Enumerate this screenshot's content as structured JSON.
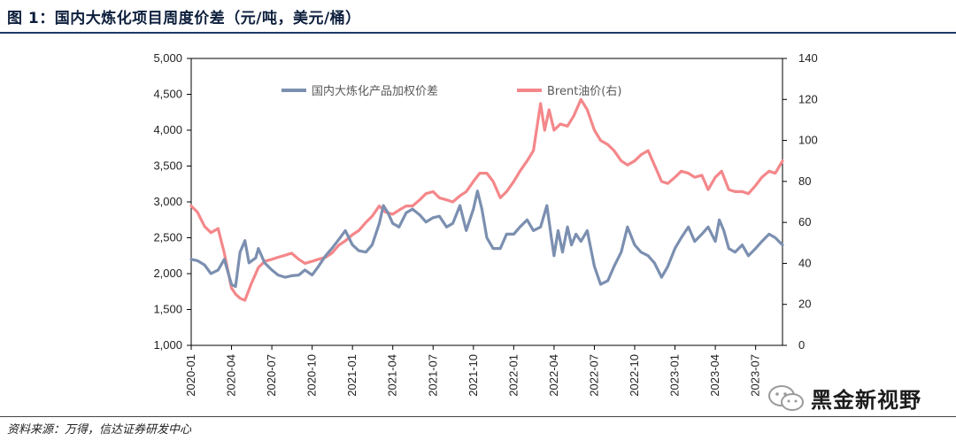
{
  "figure": {
    "title": "图 1：国内大炼化项目周度价差（元/吨，美元/桶）",
    "source": "资料来源：万得，信达证券研发中心",
    "watermark": "黑金新视野"
  },
  "chart_data": {
    "type": "line",
    "grid": false,
    "legend_position": "top-center",
    "colors": {
      "spread": "#7b8fb0",
      "brent": "#f4878a"
    },
    "x_tick_labels": [
      "2020-01",
      "2020-04",
      "2020-07",
      "2020-10",
      "2021-01",
      "2021-04",
      "2021-07",
      "2021-10",
      "2022-01",
      "2022-04",
      "2022-07",
      "2022-10",
      "2023-01",
      "2023-04",
      "2023-07"
    ],
    "xlim_months": [
      "2020-01",
      "2023-09"
    ],
    "y_left": {
      "ylim": [
        1000,
        5000
      ],
      "ticks": [
        "1,000",
        "1,500",
        "2,000",
        "2,500",
        "3,000",
        "3,500",
        "4,000",
        "4,500",
        "5,000"
      ]
    },
    "y_right": {
      "ylim": [
        0,
        140
      ],
      "ticks": [
        "0",
        "20",
        "40",
        "60",
        "80",
        "100",
        "120",
        "140"
      ]
    },
    "series": [
      {
        "name": "国内大炼化产品加权价差",
        "axis": "left",
        "values": [
          [
            "2020-01",
            2200
          ],
          [
            "2020-01-15",
            2180
          ],
          [
            "2020-02",
            2120
          ],
          [
            "2020-02-15",
            2000
          ],
          [
            "2020-03",
            2050
          ],
          [
            "2020-03-15",
            2200
          ],
          [
            "2020-04",
            1850
          ],
          [
            "2020-04-10",
            1820
          ],
          [
            "2020-04-20",
            2300
          ],
          [
            "2020-05",
            2460
          ],
          [
            "2020-05-10",
            2150
          ],
          [
            "2020-05-25",
            2220
          ],
          [
            "2020-06",
            2350
          ],
          [
            "2020-06-15",
            2150
          ],
          [
            "2020-07",
            2050
          ],
          [
            "2020-07-15",
            1980
          ],
          [
            "2020-08",
            1950
          ],
          [
            "2020-08-15",
            1970
          ],
          [
            "2020-09",
            1980
          ],
          [
            "2020-09-15",
            2050
          ],
          [
            "2020-10",
            1980
          ],
          [
            "2020-10-15",
            2100
          ],
          [
            "2020-11",
            2250
          ],
          [
            "2020-11-15",
            2350
          ],
          [
            "2020-12",
            2480
          ],
          [
            "2020-12-15",
            2600
          ],
          [
            "2021-01",
            2400
          ],
          [
            "2021-01-15",
            2320
          ],
          [
            "2021-02",
            2300
          ],
          [
            "2021-02-15",
            2400
          ],
          [
            "2021-03",
            2700
          ],
          [
            "2021-03-10",
            2950
          ],
          [
            "2021-03-20",
            2850
          ],
          [
            "2021-04",
            2700
          ],
          [
            "2021-04-15",
            2650
          ],
          [
            "2021-05",
            2850
          ],
          [
            "2021-05-15",
            2900
          ],
          [
            "2021-06",
            2820
          ],
          [
            "2021-06-15",
            2720
          ],
          [
            "2021-07",
            2780
          ],
          [
            "2021-07-15",
            2800
          ],
          [
            "2021-08",
            2650
          ],
          [
            "2021-08-15",
            2700
          ],
          [
            "2021-09",
            2950
          ],
          [
            "2021-09-15",
            2600
          ],
          [
            "2021-10",
            2900
          ],
          [
            "2021-10-10",
            3150
          ],
          [
            "2021-10-20",
            2900
          ],
          [
            "2021-11",
            2500
          ],
          [
            "2021-11-15",
            2350
          ],
          [
            "2021-12",
            2350
          ],
          [
            "2021-12-15",
            2550
          ],
          [
            "2022-01",
            2550
          ],
          [
            "2022-01-15",
            2650
          ],
          [
            "2022-02",
            2750
          ],
          [
            "2022-02-15",
            2600
          ],
          [
            "2022-03",
            2650
          ],
          [
            "2022-03-15",
            2950
          ],
          [
            "2022-03-25",
            2500
          ],
          [
            "2022-04",
            2250
          ],
          [
            "2022-04-10",
            2600
          ],
          [
            "2022-04-20",
            2300
          ],
          [
            "2022-05",
            2650
          ],
          [
            "2022-05-10",
            2400
          ],
          [
            "2022-05-20",
            2550
          ],
          [
            "2022-06",
            2450
          ],
          [
            "2022-06-15",
            2600
          ],
          [
            "2022-07",
            2100
          ],
          [
            "2022-07-15",
            1850
          ],
          [
            "2022-08",
            1900
          ],
          [
            "2022-08-15",
            2100
          ],
          [
            "2022-09",
            2300
          ],
          [
            "2022-09-15",
            2650
          ],
          [
            "2022-10",
            2400
          ],
          [
            "2022-10-15",
            2300
          ],
          [
            "2022-11",
            2250
          ],
          [
            "2022-11-15",
            2150
          ],
          [
            "2022-12",
            1950
          ],
          [
            "2022-12-15",
            2100
          ],
          [
            "2023-01",
            2350
          ],
          [
            "2023-01-15",
            2500
          ],
          [
            "2023-02",
            2650
          ],
          [
            "2023-02-15",
            2450
          ],
          [
            "2023-03",
            2550
          ],
          [
            "2023-03-15",
            2650
          ],
          [
            "2023-04",
            2450
          ],
          [
            "2023-04-10",
            2750
          ],
          [
            "2023-04-20",
            2600
          ],
          [
            "2023-05",
            2350
          ],
          [
            "2023-05-15",
            2300
          ],
          [
            "2023-06",
            2400
          ],
          [
            "2023-06-15",
            2250
          ],
          [
            "2023-07",
            2350
          ],
          [
            "2023-07-15",
            2450
          ],
          [
            "2023-08",
            2550
          ],
          [
            "2023-08-15",
            2500
          ],
          [
            "2023-09",
            2400
          ]
        ]
      },
      {
        "name": "Brent油价(右)",
        "axis": "right",
        "values": [
          [
            "2020-01",
            68
          ],
          [
            "2020-01-15",
            65
          ],
          [
            "2020-02",
            58
          ],
          [
            "2020-02-15",
            55
          ],
          [
            "2020-03",
            57
          ],
          [
            "2020-03-15",
            45
          ],
          [
            "2020-04",
            28
          ],
          [
            "2020-04-10",
            25
          ],
          [
            "2020-04-20",
            23
          ],
          [
            "2020-05",
            22
          ],
          [
            "2020-05-15",
            30
          ],
          [
            "2020-06",
            38
          ],
          [
            "2020-06-15",
            41
          ],
          [
            "2020-07",
            42
          ],
          [
            "2020-07-15",
            43
          ],
          [
            "2020-08",
            44
          ],
          [
            "2020-08-15",
            45
          ],
          [
            "2020-09",
            42
          ],
          [
            "2020-09-15",
            40
          ],
          [
            "2020-10",
            41
          ],
          [
            "2020-10-15",
            42
          ],
          [
            "2020-11",
            43
          ],
          [
            "2020-11-15",
            45
          ],
          [
            "2020-12",
            49
          ],
          [
            "2020-12-15",
            51
          ],
          [
            "2021-01",
            54
          ],
          [
            "2021-01-15",
            56
          ],
          [
            "2021-02",
            60
          ],
          [
            "2021-02-15",
            63
          ],
          [
            "2021-03",
            68
          ],
          [
            "2021-03-15",
            65
          ],
          [
            "2021-04",
            64
          ],
          [
            "2021-04-15",
            66
          ],
          [
            "2021-05",
            68
          ],
          [
            "2021-05-15",
            68
          ],
          [
            "2021-06",
            71
          ],
          [
            "2021-06-15",
            74
          ],
          [
            "2021-07",
            75
          ],
          [
            "2021-07-15",
            72
          ],
          [
            "2021-08",
            71
          ],
          [
            "2021-08-15",
            70
          ],
          [
            "2021-09",
            73
          ],
          [
            "2021-09-15",
            75
          ],
          [
            "2021-10",
            80
          ],
          [
            "2021-10-15",
            84
          ],
          [
            "2021-11",
            84
          ],
          [
            "2021-11-15",
            80
          ],
          [
            "2021-12",
            72
          ],
          [
            "2021-12-15",
            75
          ],
          [
            "2022-01",
            80
          ],
          [
            "2022-01-15",
            85
          ],
          [
            "2022-02",
            90
          ],
          [
            "2022-02-15",
            95
          ],
          [
            "2022-03",
            118
          ],
          [
            "2022-03-10",
            105
          ],
          [
            "2022-03-20",
            115
          ],
          [
            "2022-04",
            105
          ],
          [
            "2022-04-15",
            108
          ],
          [
            "2022-05",
            107
          ],
          [
            "2022-05-15",
            112
          ],
          [
            "2022-06",
            120
          ],
          [
            "2022-06-15",
            115
          ],
          [
            "2022-07",
            105
          ],
          [
            "2022-07-15",
            100
          ],
          [
            "2022-08",
            98
          ],
          [
            "2022-08-15",
            95
          ],
          [
            "2022-09",
            90
          ],
          [
            "2022-09-15",
            88
          ],
          [
            "2022-10",
            90
          ],
          [
            "2022-10-15",
            93
          ],
          [
            "2022-11",
            95
          ],
          [
            "2022-11-15",
            88
          ],
          [
            "2022-12",
            80
          ],
          [
            "2022-12-15",
            79
          ],
          [
            "2023-01",
            82
          ],
          [
            "2023-01-15",
            85
          ],
          [
            "2023-02",
            84
          ],
          [
            "2023-02-15",
            82
          ],
          [
            "2023-03",
            83
          ],
          [
            "2023-03-15",
            76
          ],
          [
            "2023-04",
            82
          ],
          [
            "2023-04-15",
            85
          ],
          [
            "2023-05",
            76
          ],
          [
            "2023-05-15",
            75
          ],
          [
            "2023-06",
            75
          ],
          [
            "2023-06-15",
            74
          ],
          [
            "2023-07",
            78
          ],
          [
            "2023-07-15",
            82
          ],
          [
            "2023-08",
            85
          ],
          [
            "2023-08-15",
            84
          ],
          [
            "2023-09",
            90
          ]
        ]
      }
    ]
  }
}
